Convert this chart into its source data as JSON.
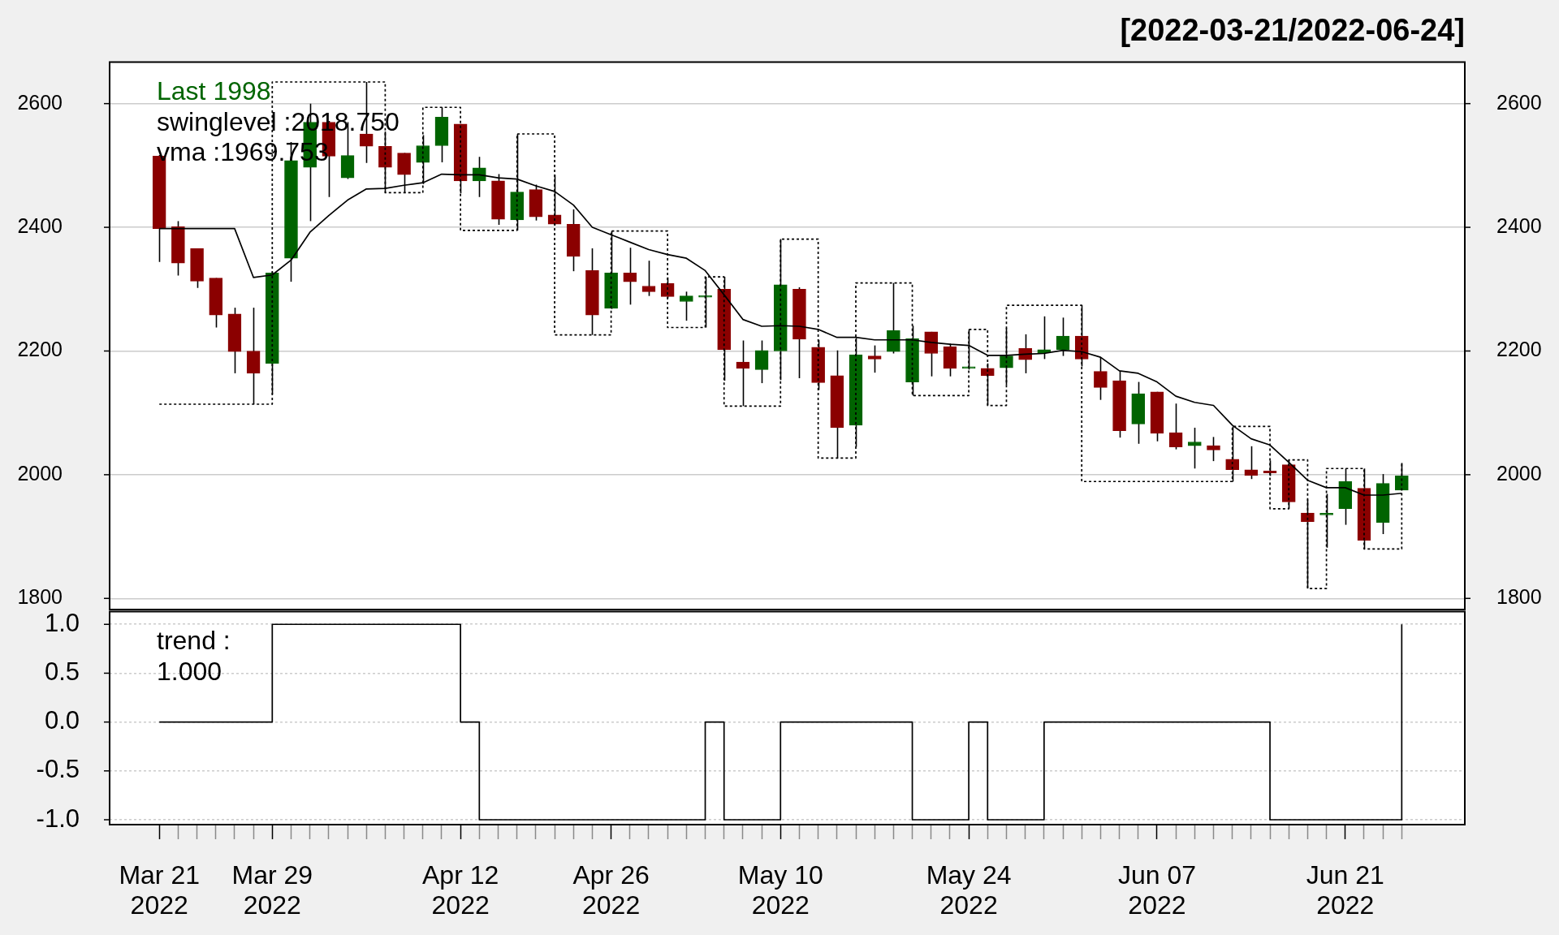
{
  "chart_data": [
    {
      "type": "candlestick",
      "title": "[2022-03-21/2022-06-24]",
      "categories": [
        null,
        null,
        null,
        null,
        null,
        null,
        null,
        null,
        null,
        null,
        null,
        null,
        null,
        null,
        null,
        null,
        null,
        null,
        null,
        null,
        null,
        null,
        null,
        null,
        null,
        null,
        null,
        null,
        null,
        null,
        null,
        null,
        null,
        null,
        null,
        null,
        null,
        null,
        null,
        null,
        null,
        null,
        null,
        null,
        null,
        null,
        null,
        null,
        null,
        null,
        null,
        null,
        null,
        null,
        null,
        null,
        null,
        null,
        null,
        null,
        null,
        null,
        null,
        null,
        null,
        null,
        null
      ],
      "ohlc": [
        [
          2515,
          2517,
          2344,
          2398
        ],
        [
          2401,
          2410,
          2322,
          2342
        ],
        [
          2366,
          2366,
          2302,
          2313
        ],
        [
          2318,
          2318,
          2238,
          2258
        ],
        [
          2260,
          2270,
          2164,
          2199
        ],
        [
          2200,
          2270,
          2114,
          2164
        ],
        [
          2180,
          2328,
          2130,
          2326
        ],
        [
          2350,
          2538,
          2312,
          2508
        ],
        [
          2497,
          2600,
          2410,
          2570
        ],
        [
          2570,
          2572,
          2449,
          2515
        ],
        [
          2480,
          2570,
          2478,
          2516
        ],
        [
          2551,
          2635,
          2504,
          2531
        ],
        [
          2531,
          2555,
          2456,
          2497
        ],
        [
          2520,
          2520,
          2456,
          2485
        ],
        [
          2505,
          2549,
          2470,
          2532
        ],
        [
          2532,
          2594,
          2505,
          2578
        ],
        [
          2567,
          2567,
          2455,
          2475
        ],
        [
          2475,
          2514,
          2449,
          2496
        ],
        [
          2475,
          2486,
          2404,
          2413
        ],
        [
          2412,
          2551,
          2395,
          2457
        ],
        [
          2461,
          2469,
          2411,
          2417
        ],
        [
          2420,
          2485,
          2403,
          2405
        ],
        [
          2405,
          2429,
          2329,
          2353
        ],
        [
          2330,
          2366,
          2226,
          2258
        ],
        [
          2269,
          2394,
          2268,
          2326
        ],
        [
          2326,
          2367,
          2275,
          2312
        ],
        [
          2305,
          2346,
          2289,
          2296
        ],
        [
          2309,
          2319,
          2285,
          2288
        ],
        [
          2280,
          2296,
          2249,
          2289
        ],
        [
          2287,
          2320,
          2238,
          2287
        ],
        [
          2300,
          2320,
          2152,
          2202
        ],
        [
          2182,
          2217,
          2111,
          2172
        ],
        [
          2170,
          2217,
          2148,
          2201
        ],
        [
          2200,
          2381,
          2153,
          2307
        ],
        [
          2300,
          2303,
          2156,
          2219
        ],
        [
          2206,
          2218,
          2137,
          2149
        ],
        [
          2160,
          2201,
          2027,
          2076
        ],
        [
          2080,
          2221,
          2045,
          2194
        ],
        [
          2192,
          2209,
          2165,
          2187
        ],
        [
          2199,
          2310,
          2196,
          2233
        ],
        [
          2150,
          2241,
          2128,
          2220
        ],
        [
          2231,
          2231,
          2159,
          2196
        ],
        [
          2207,
          2212,
          2159,
          2172
        ],
        [
          2172,
          2235,
          2170,
          2172
        ],
        [
          2172,
          2180,
          2112,
          2160
        ],
        [
          2173,
          2237,
          2145,
          2192
        ],
        [
          2204,
          2227,
          2164,
          2186
        ],
        [
          2197,
          2256,
          2187,
          2202
        ],
        [
          2202,
          2254,
          2192,
          2224
        ],
        [
          2224,
          2274,
          2175,
          2187
        ],
        [
          2167,
          2190,
          2121,
          2141
        ],
        [
          2152,
          2168,
          2060,
          2071
        ],
        [
          2082,
          2150,
          2050,
          2131
        ],
        [
          2134,
          2134,
          2054,
          2067
        ],
        [
          2068,
          2115,
          2041,
          2045
        ],
        [
          2047,
          2076,
          2010,
          2053
        ],
        [
          2047,
          2061,
          2022,
          2040
        ],
        [
          2025,
          2078,
          1989,
          2008
        ],
        [
          2008,
          2046,
          1993,
          1999
        ],
        [
          2006,
          2023,
          1998,
          2003
        ],
        [
          2016,
          2024,
          1945,
          1956
        ],
        [
          1938,
          1960,
          1816,
          1924
        ],
        [
          1935,
          1969,
          1882,
          1935
        ],
        [
          1945,
          2010,
          1919,
          1989
        ],
        [
          1978,
          2010,
          1880,
          1894
        ],
        [
          1923,
          2001,
          1904,
          1986
        ],
        [
          1975,
          2019,
          1975,
          1998
        ]
      ],
      "colors": [
        "#8b0000",
        "#8b0000",
        "#8b0000",
        "#8b0000",
        "#8b0000",
        "#8b0000",
        "#006400",
        "#006400",
        "#006400",
        "#8b0000",
        "#006400",
        "#8b0000",
        "#8b0000",
        "#8b0000",
        "#006400",
        "#006400",
        "#8b0000",
        "#006400",
        "#8b0000",
        "#006400",
        "#8b0000",
        "#8b0000",
        "#8b0000",
        "#8b0000",
        "#006400",
        "#8b0000",
        "#8b0000",
        "#8b0000",
        "#006400",
        "#006400",
        "#8b0000",
        "#8b0000",
        "#006400",
        "#006400",
        "#8b0000",
        "#8b0000",
        "#8b0000",
        "#006400",
        "#8b0000",
        "#006400",
        "#006400",
        "#8b0000",
        "#8b0000",
        "#006400",
        "#8b0000",
        "#006400",
        "#8b0000",
        "#006400",
        "#006400",
        "#8b0000",
        "#8b0000",
        "#8b0000",
        "#006400",
        "#8b0000",
        "#8b0000",
        "#006400",
        "#8b0000",
        "#8b0000",
        "#8b0000",
        "#8b0000",
        "#8b0000",
        "#8b0000",
        "#006400",
        "#006400",
        "#8b0000",
        "#006400",
        "#006400"
      ],
      "series": [
        {
          "type": "line",
          "color": "#000000",
          "values": [
            2398,
            2398,
            2398,
            2398,
            2398,
            2319,
            2323,
            2347,
            2392,
            2419,
            2444,
            2462,
            2463,
            2468,
            2472,
            2486,
            2485,
            2485,
            2480,
            2478,
            2467,
            2458,
            2436,
            2400,
            2388,
            2376,
            2364,
            2356,
            2350,
            2330,
            2291,
            2251,
            2240,
            2241,
            2240,
            2235,
            2222,
            2222,
            2218,
            2218,
            2218,
            2214,
            2211,
            2209,
            2193,
            2193,
            2195,
            2196,
            2201,
            2199,
            2190,
            2168,
            2164,
            2150,
            2127,
            2117,
            2112,
            2080,
            2058,
            2048,
            2020,
            1991,
            1979,
            1979,
            1967,
            1967,
            1970
          ]
        },
        {
          "type": "step",
          "color": "#000000",
          "line_style": "dotted",
          "values": [
            2114,
            2114,
            2114,
            2114,
            2114,
            2114,
            2635,
            2635,
            2635,
            2635,
            2635,
            2635,
            2456,
            2456,
            2594,
            2594,
            2395,
            2395,
            2395,
            2551,
            2551,
            2226,
            2226,
            2226,
            2394,
            2394,
            2394,
            2238,
            2238,
            2320,
            2111,
            2111,
            2111,
            2381,
            2381,
            2027,
            2027,
            2310,
            2310,
            2310,
            2128,
            2128,
            2128,
            2235,
            2112,
            2274,
            2274,
            2274,
            2274,
            1989,
            1989,
            1989,
            1989,
            1989,
            1989,
            1989,
            1989,
            2078,
            2078,
            1945,
            2024,
            1816,
            2010,
            2010,
            1880,
            1880,
            2019
          ]
        }
      ],
      "ylim": [
        1782,
        2667
      ],
      "yticks": [
        1800,
        2000,
        2200,
        2400,
        2600
      ],
      "y2lim": [
        1782,
        2667
      ],
      "y2ticks": [
        1800,
        2000,
        2200,
        2400,
        2600
      ],
      "grid": "y",
      "tick_labels": "y",
      "annotations": [
        "Last 1998",
        "swinglevel :2018.750",
        "vma :1969.753"
      ]
    },
    {
      "type": "step",
      "categories": [
        "Mar 21\n2022",
        null,
        null,
        null,
        null,
        null,
        "Mar 29\n2022",
        null,
        null,
        null,
        null,
        null,
        null,
        null,
        null,
        null,
        "Apr 12\n2022",
        null,
        null,
        null,
        null,
        null,
        null,
        null,
        "Apr 26\n2022",
        null,
        null,
        null,
        null,
        null,
        null,
        null,
        null,
        "May 10\n2022",
        null,
        null,
        null,
        null,
        null,
        null,
        null,
        null,
        null,
        "May 24\n2022",
        null,
        null,
        null,
        null,
        null,
        null,
        null,
        null,
        null,
        "Jun 07\n2022",
        null,
        null,
        null,
        null,
        null,
        null,
        null,
        null,
        null,
        "Jun 21\n2022",
        null,
        null,
        null
      ],
      "values": [
        0,
        0,
        0,
        0,
        0,
        0,
        1,
        1,
        1,
        1,
        1,
        1,
        1,
        1,
        1,
        1,
        0,
        -1,
        -1,
        -1,
        -1,
        -1,
        -1,
        -1,
        -1,
        -1,
        -1,
        -1,
        -1,
        0,
        -1,
        -1,
        -1,
        0,
        0,
        0,
        0,
        0,
        0,
        0,
        -1,
        -1,
        -1,
        0,
        -1,
        -1,
        -1,
        0,
        0,
        0,
        0,
        0,
        0,
        0,
        0,
        0,
        0,
        0,
        0,
        -1,
        -1,
        -1,
        -1,
        -1,
        -1,
        -1,
        1
      ],
      "color": "#000000",
      "ylim": [
        -1.05,
        1.13
      ],
      "yticks": [
        {
          "value": -1,
          "label": "-1.0"
        },
        -0.5,
        {
          "value": 0,
          "label": "0.0"
        },
        0.5,
        {
          "value": 1,
          "label": "1.0"
        }
      ],
      "grid": "y",
      "annotations": [
        "trend :",
        "1.000"
      ]
    }
  ]
}
